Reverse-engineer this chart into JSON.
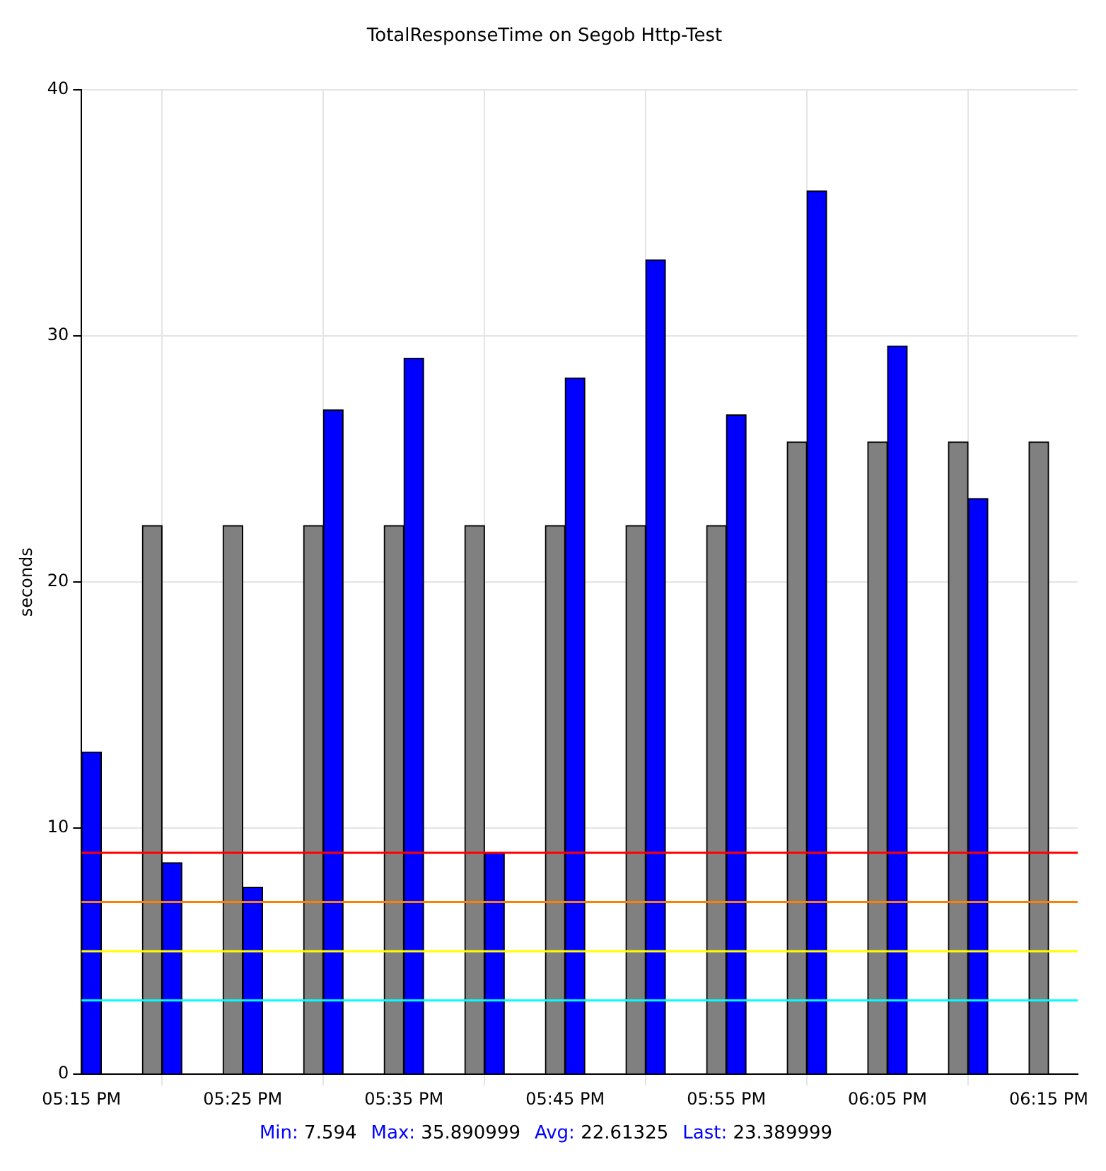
{
  "chart_data": {
    "type": "bar",
    "title": "TotalResponseTime on Segob Http-Test",
    "ylabel": "seconds",
    "series": [
      {
        "color": "#808080",
        "x": [
          17.3333,
          17.4167,
          17.5,
          17.5833,
          17.6667,
          17.75,
          17.8333,
          17.9167,
          18,
          18.0833,
          18.1667,
          18.25
        ],
        "values": [
          22.3,
          22.3,
          22.3,
          22.3,
          22.3,
          22.3,
          22.3,
          22.3,
          25.7,
          25.7,
          25.7,
          25.7
        ]
      },
      {
        "color": "#0000ff",
        "x": [
          17.25,
          17.3333,
          17.4167,
          17.5,
          17.5833,
          17.6667,
          17.75,
          17.8333,
          17.9167,
          18,
          18.0833,
          18.1667
        ],
        "values": [
          13.1,
          8.6,
          7.6,
          27,
          29.1,
          9,
          28.3,
          33.1,
          26.8,
          35.9,
          29.6,
          23.4
        ]
      }
    ],
    "xlim": [
      17.25,
      18.28
    ],
    "xticks": [
      {
        "value": 17.25,
        "label": "05:15 PM"
      },
      {
        "value": 17.4167,
        "label": "05:25 PM"
      },
      {
        "value": 17.5833,
        "label": "05:35 PM"
      },
      {
        "value": 17.75,
        "label": "05:45 PM"
      },
      {
        "value": 17.9167,
        "label": "05:55 PM"
      },
      {
        "value": 18.0833,
        "label": "06:05 PM"
      },
      {
        "value": 18.25,
        "label": "06:15 PM"
      }
    ],
    "ylim": [
      0,
      40
    ],
    "yticks": [
      0,
      10,
      20,
      30,
      40
    ],
    "grid": true,
    "legend": false,
    "ref_lines": [
      {
        "axis": "y",
        "value": 9,
        "color": "#ff0000"
      },
      {
        "axis": "y",
        "value": 7,
        "color": "#ff8000"
      },
      {
        "axis": "y",
        "value": 5,
        "color": "#ffff00"
      },
      {
        "axis": "y",
        "value": 3,
        "color": "#00ffff"
      }
    ],
    "annotations": [
      "Min: 7.594",
      "Max: 35.890999",
      "Avg: 22.61325",
      "Last: 23.389999"
    ]
  }
}
